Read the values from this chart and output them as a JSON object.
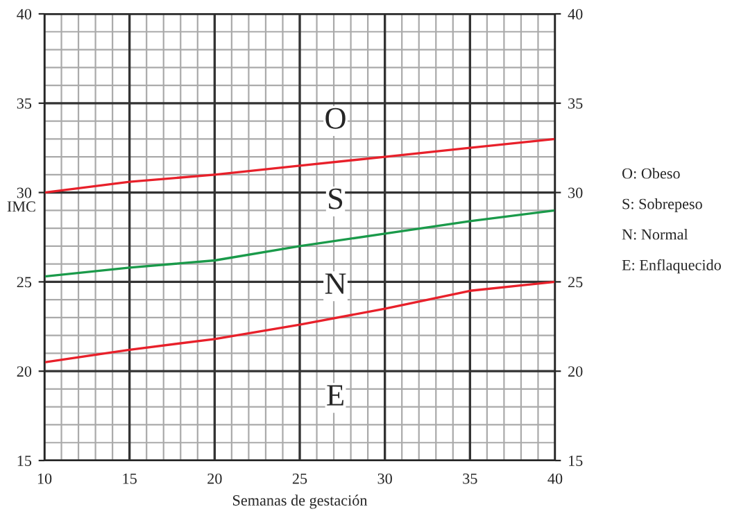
{
  "chart_data": {
    "type": "line",
    "xlabel": "Semanas de gestación",
    "ylabel": "IMC",
    "x": [
      10,
      15,
      20,
      25,
      30,
      35,
      40
    ],
    "series": [
      {
        "color": "#e8202a",
        "values": [
          30,
          30.6,
          31,
          31.5,
          32,
          32.5,
          33
        ]
      },
      {
        "color": "#1a9a4a",
        "values": [
          25.3,
          25.8,
          26.2,
          27,
          27.7,
          28.4,
          29
        ]
      },
      {
        "color": "#e8202a",
        "values": [
          20.5,
          21.2,
          21.8,
          22.6,
          23.5,
          24.5,
          25
        ]
      }
    ],
    "xlim": [
      10,
      40
    ],
    "xticks": [
      10,
      15,
      20,
      25,
      30,
      35,
      40
    ],
    "ylim": [
      15,
      40
    ],
    "yticks": [
      15,
      20,
      25,
      30,
      35,
      40
    ],
    "y2lim": [
      15,
      40
    ],
    "y2ticks": [
      15,
      20,
      25,
      30,
      35,
      40
    ],
    "grid": true,
    "marker": "none",
    "line_style": "solid",
    "legend": false,
    "annotations": [
      "O",
      "S",
      "N",
      "E",
      "O: Obeso",
      "S: Sobrepeso",
      "N: Normal",
      "E: Enflaquecido"
    ]
  }
}
